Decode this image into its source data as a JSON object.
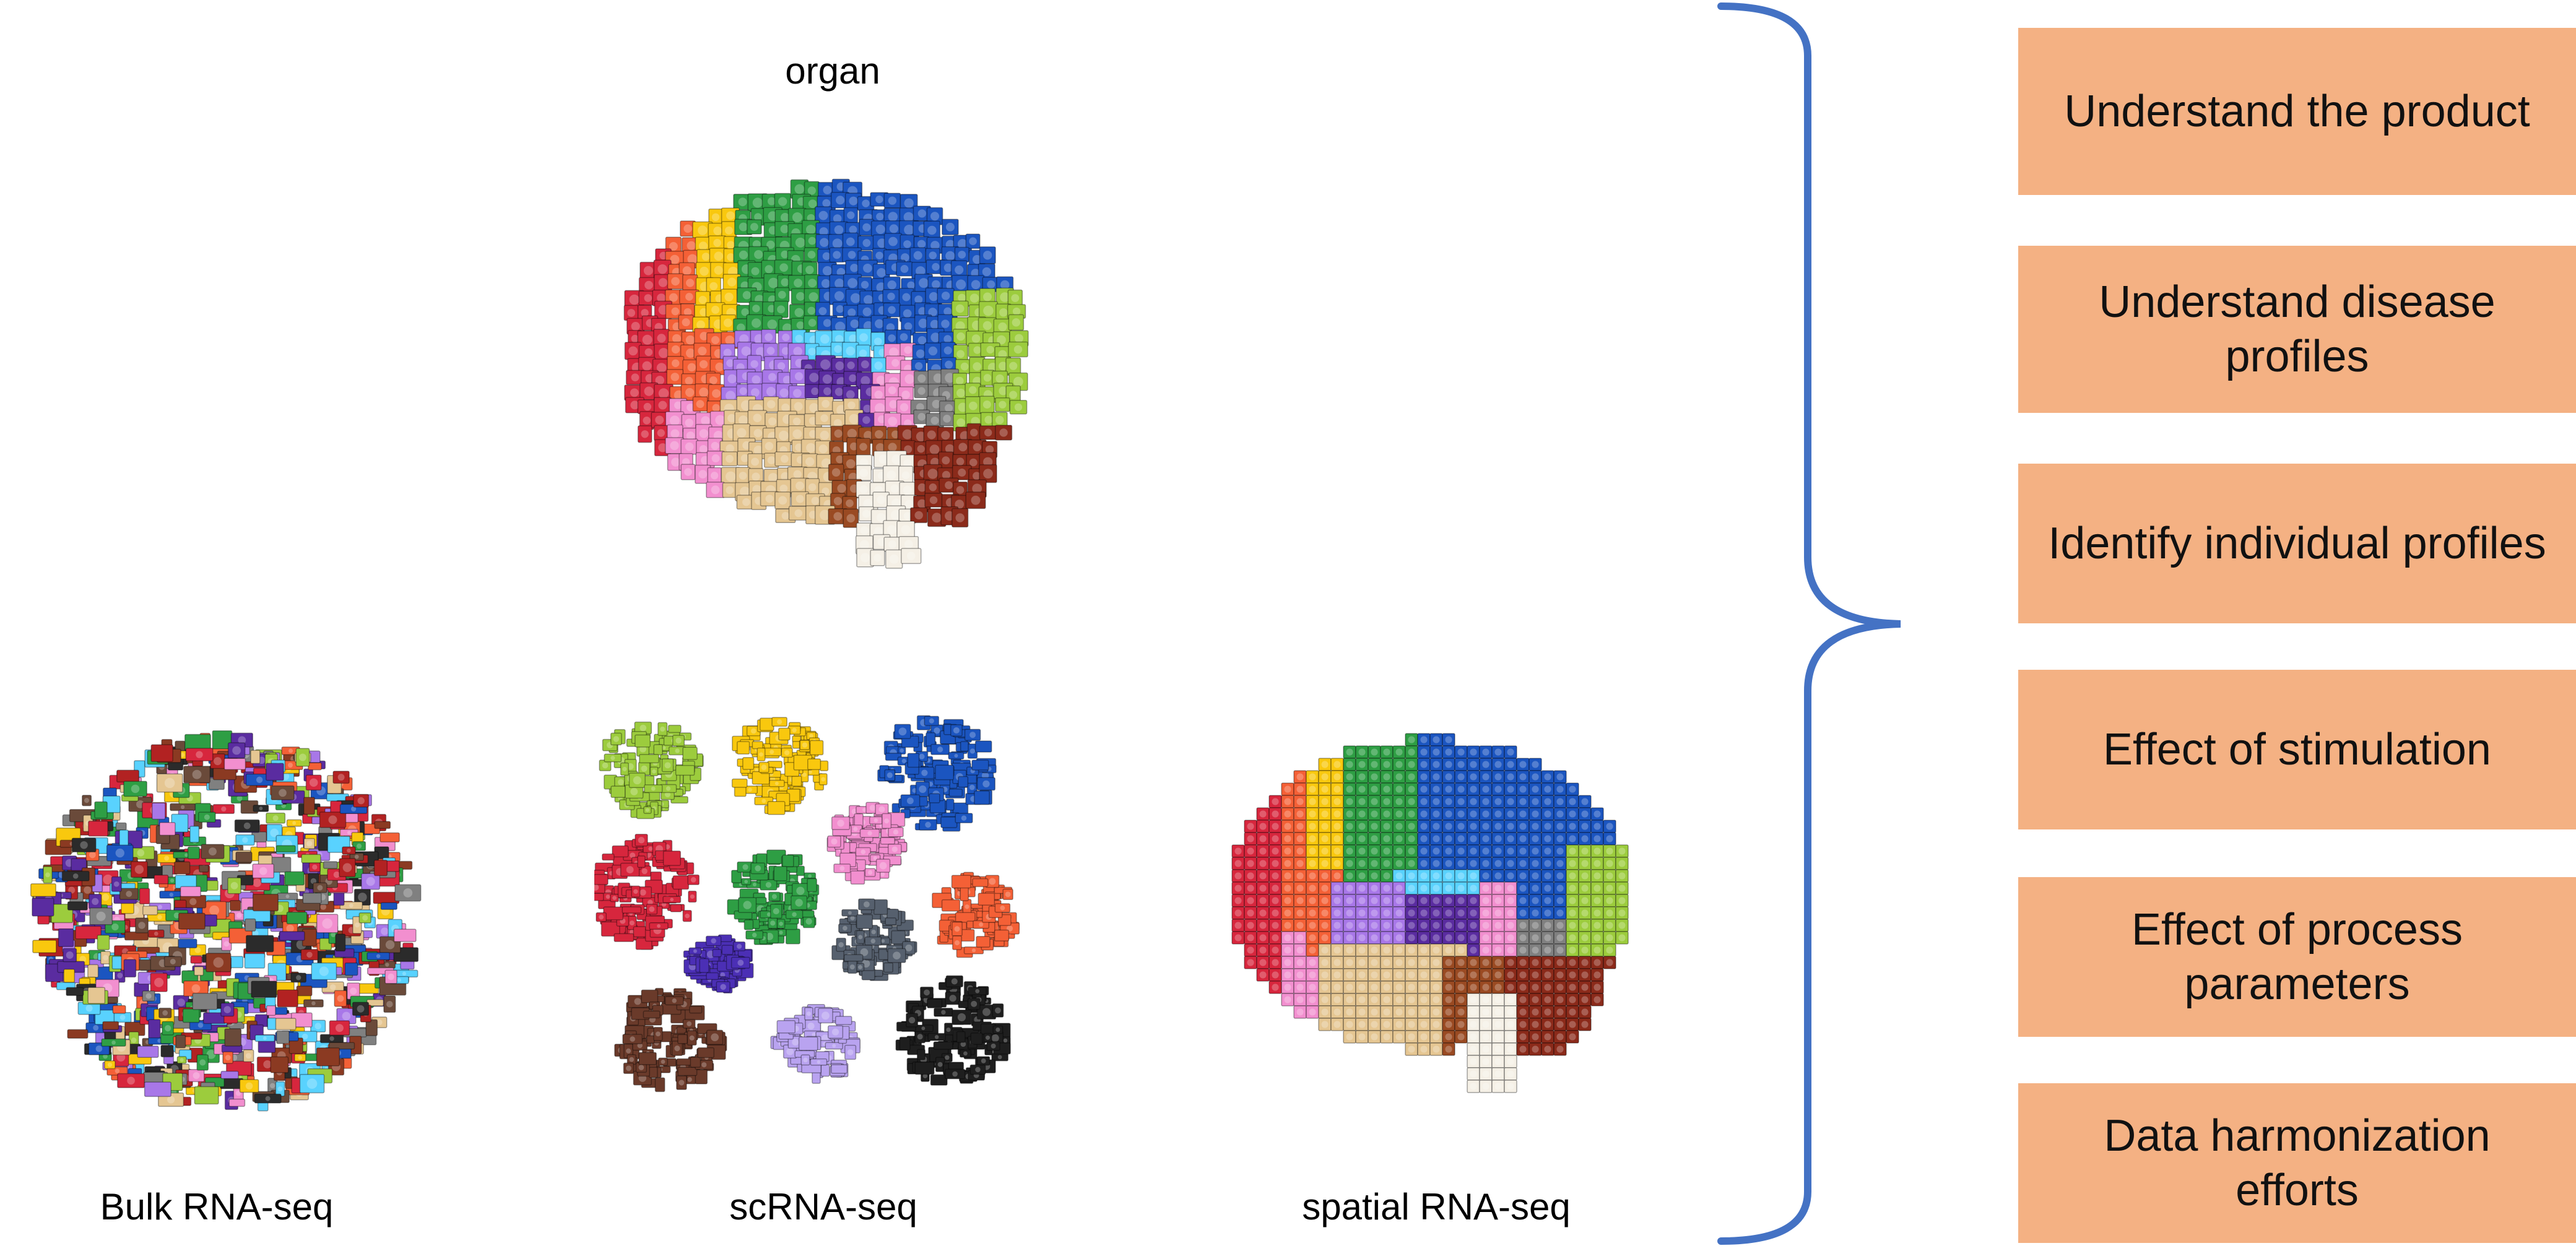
{
  "labels": {
    "organ": "organ",
    "bulk": "Bulk RNA-seq",
    "sc": "scRNA-seq",
    "spatial": "spatial RNA-seq"
  },
  "applications": [
    {
      "text": "Understand the product"
    },
    {
      "text": "Understand disease profiles"
    },
    {
      "text": "Identify individual profiles"
    },
    {
      "text": "Effect of stimulation"
    },
    {
      "text": "Effect of process parameters"
    },
    {
      "text": "Data harmonization efforts"
    }
  ],
  "colors": {
    "box_fill": "#f4b183",
    "brace": "#4472c4",
    "text": "#000000",
    "brick_palette": [
      "#d7263d",
      "#f46036",
      "#f9c80e",
      "#2e9e44",
      "#1b55c0",
      "#59d2fe",
      "#a877e8",
      "#f28fcf",
      "#e5c692",
      "#8b3a22",
      "#b22222",
      "#9ccc3d",
      "#2b2b2b",
      "#6a4a3a",
      "#5a2ca0",
      "#808080",
      "#ffffff"
    ]
  },
  "icons": {
    "organ": "lego-brain-3d-icon",
    "bulk": "mixed-lego-pile-icon",
    "sc": "sorted-lego-clusters-icon",
    "spatial": "lego-brain-sagittal-icon"
  }
}
